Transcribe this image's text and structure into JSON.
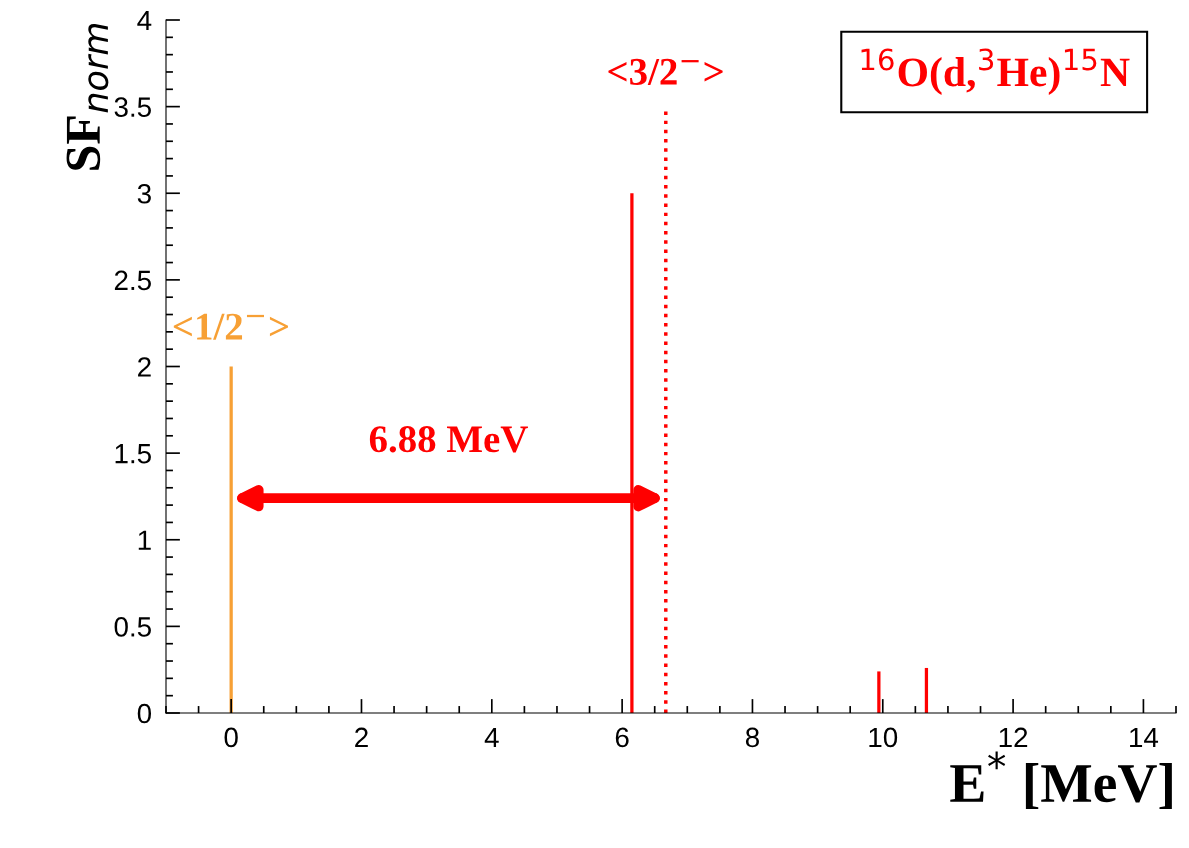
{
  "chart_data": {
    "type": "bar",
    "title": "$^{16}$O(d,$^{3}$He)$^{15}$N",
    "xlabel": "E$^{*}$ [MeV]",
    "ylabel": "SF$_{norm}$",
    "series": [
      {
        "x": [
          0
        ],
        "values": [
          2.0
        ],
        "color": "#f7a035"
      },
      {
        "x": [
          6.15,
          9.94,
          10.67
        ],
        "values": [
          3.0,
          0.24,
          0.26
        ],
        "color": "#ff0000"
      }
    ],
    "ref_lines": [
      {
        "axis": "x",
        "value": 6.67,
        "label": "<3/2$^{−}$>",
        "color": "#ff0000",
        "line_style": "dotted"
      }
    ],
    "annotations": [
      {
        "text": "<1/2$^{−}$>",
        "x": 0,
        "y": 2.0
      },
      "6.88 MeV"
    ],
    "xlim": [
      -1,
      14.5
    ],
    "ylim": [
      0,
      4
    ],
    "xticks": [
      0,
      2,
      4,
      6,
      8,
      10,
      12,
      14
    ],
    "yticks": [
      0,
      0.5,
      1,
      1.5,
      2,
      2.5,
      3,
      3.5,
      4
    ],
    "grid": false,
    "legend": false
  }
}
